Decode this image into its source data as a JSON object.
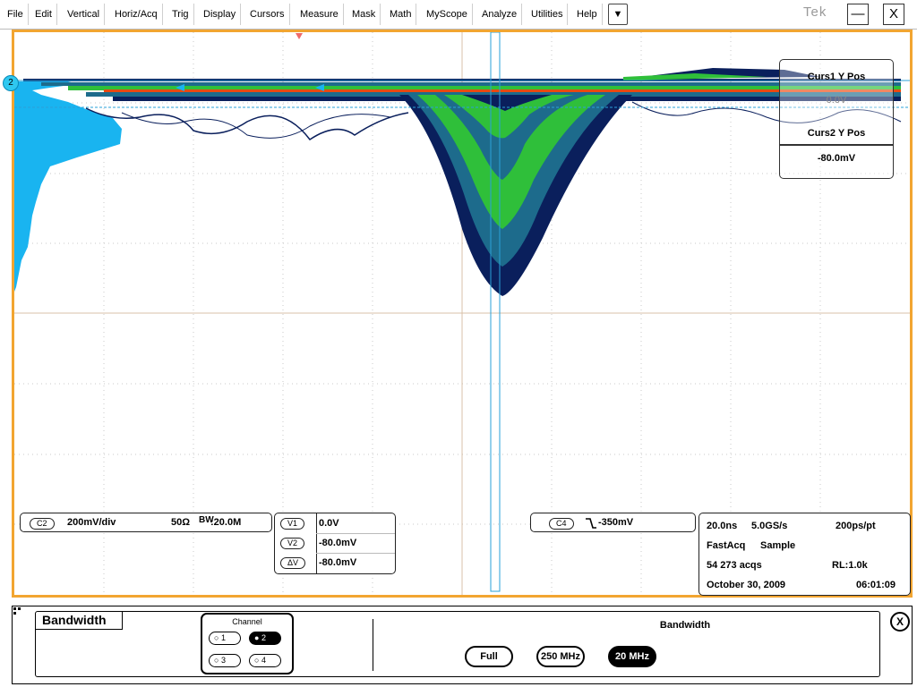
{
  "menu": {
    "items": [
      "File",
      "Edit",
      "Vertical",
      "Horiz/Acq",
      "Trig",
      "Display",
      "Cursors",
      "Measure",
      "Mask",
      "Math",
      "MyScope",
      "Analyze",
      "Utilities",
      "Help"
    ],
    "dropdown_glyph": "▼",
    "brand": "Tek",
    "minimize_glyph": "—",
    "close_glyph": "X"
  },
  "waveform": {
    "channel_marker": "2",
    "trace_colors": [
      "#0a1f5c",
      "#1d6b8c",
      "#2fbf3a",
      "#d4e22a",
      "#f0a020",
      "#e84a10"
    ],
    "histogram_color": "#19b4f0",
    "frame_color": "#f2a531"
  },
  "cursor_readout": {
    "curs1_label": "Curs1 Y Pos",
    "curs1_value": "0.0V",
    "curs2_label": "Curs2 Y Pos",
    "curs2_value": "-80.0mV"
  },
  "channel_info": {
    "chip": "C2",
    "scale": "200mV/div",
    "termination": "50Ω",
    "bw_label": "BW",
    "bw_value": ":20.0M"
  },
  "cursor_values": {
    "v1_label": "V1",
    "v1_value": "0.0V",
    "v2_label": "V2",
    "v2_value": "-80.0mV",
    "dv_label": "ΔV",
    "dv_value": "-80.0mV"
  },
  "trigger_info": {
    "chip": "C4",
    "level": "-350mV"
  },
  "acquisition": {
    "timebase": "20.0ns",
    "sample_rate": "5.0GS/s",
    "resolution": "200ps/pt",
    "mode": "FastAcq",
    "acq_type": "Sample",
    "acqs": "54 273 acqs",
    "record_length": "RL:1.0k",
    "date": "October 30, 2009",
    "time": "06:01:09"
  },
  "control_panel": {
    "title": "Bandwidth",
    "channel_group_label": "Channel",
    "channels": [
      {
        "label": "1",
        "selected": false
      },
      {
        "label": "2",
        "selected": true
      },
      {
        "label": "3",
        "selected": false
      },
      {
        "label": "4",
        "selected": false
      }
    ],
    "bandwidth_heading": "Bandwidth",
    "options": [
      {
        "label": "Full",
        "selected": false
      },
      {
        "label": "250 MHz",
        "selected": false
      },
      {
        "label": "20 MHz",
        "selected": true
      }
    ],
    "close_glyph": "X"
  }
}
